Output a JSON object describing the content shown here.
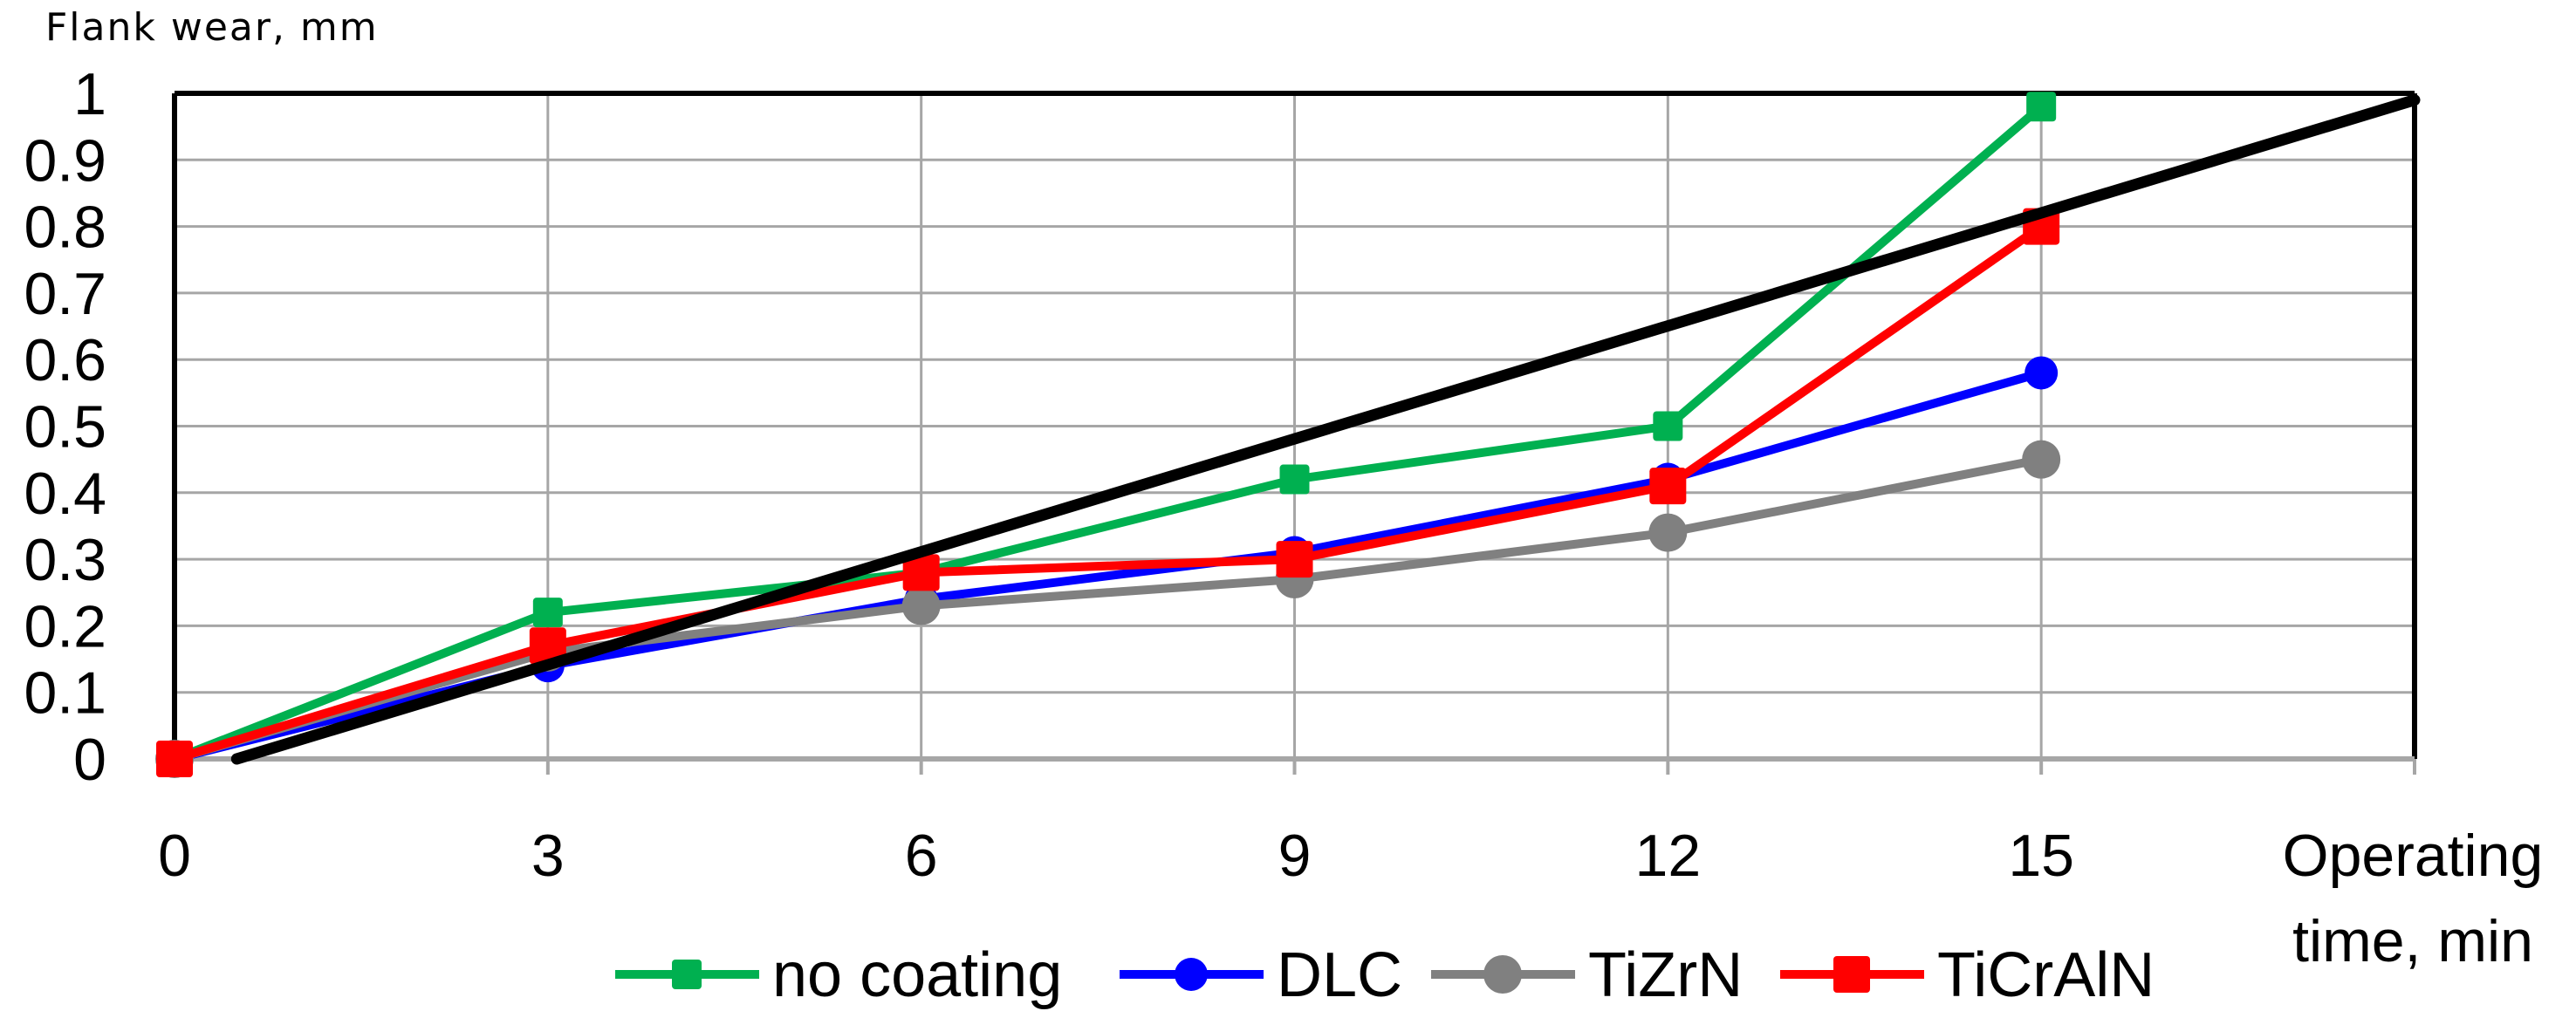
{
  "chart_data": {
    "type": "line",
    "ylabel": "Flank wear, mm",
    "xlabel_line1": "Operating",
    "xlabel_line2": "time, min",
    "x": [
      0,
      3,
      6,
      9,
      12,
      15
    ],
    "xlim": [
      0,
      18
    ],
    "ylim": [
      0,
      1
    ],
    "xticks": [
      0,
      3,
      6,
      9,
      12,
      15
    ],
    "yticks": [
      0,
      0.1,
      0.2,
      0.3,
      0.4,
      0.5,
      0.6,
      0.7,
      0.8,
      0.9,
      1
    ],
    "ytick_labels": [
      "0",
      "0.1",
      "0.2",
      "0.3",
      "0.4",
      "0.5",
      "0.6",
      "0.7",
      "0.8",
      "0.9",
      "1"
    ],
    "xtick_labels": [
      "0",
      "3",
      "6",
      "9",
      "12",
      "15"
    ],
    "grid": true,
    "legend_position": "bottom",
    "series": [
      {
        "name": "no coating",
        "color": "#00b050",
        "marker": "square",
        "values": [
          0,
          0.22,
          0.28,
          0.42,
          0.5,
          0.98
        ]
      },
      {
        "name": "DLC",
        "color": "#0000ff",
        "marker": "circle",
        "values": [
          0,
          0.14,
          0.24,
          0.31,
          0.42,
          0.58
        ]
      },
      {
        "name": "TiZrN",
        "color": "#808080",
        "marker": "circle",
        "values": [
          0,
          0.16,
          0.23,
          0.27,
          0.34,
          0.45
        ]
      },
      {
        "name": "TiCrAlN",
        "color": "#ff0000",
        "marker": "square",
        "values": [
          0,
          0.17,
          0.28,
          0.3,
          0.41,
          0.8
        ]
      }
    ],
    "limit_line": {
      "color": "#000000",
      "x": [
        0.5,
        18
      ],
      "values": [
        0,
        0.99
      ]
    }
  }
}
